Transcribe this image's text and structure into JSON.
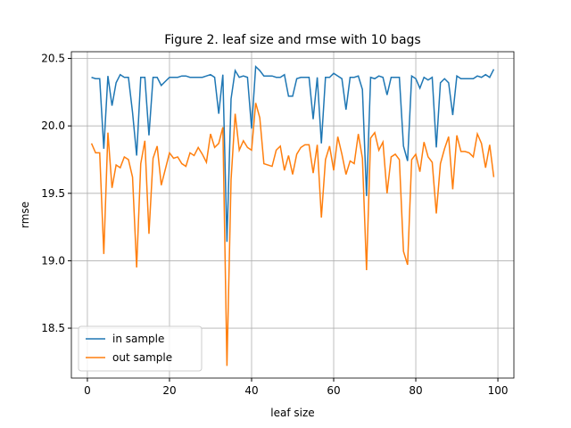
{
  "chart_data": {
    "type": "line",
    "title": "Figure 2. leaf size and rmse with 10 bags",
    "xlabel": "leaf size",
    "ylabel": "rmse",
    "x": [
      1,
      2,
      3,
      4,
      5,
      6,
      7,
      8,
      9,
      10,
      11,
      12,
      13,
      14,
      15,
      16,
      17,
      18,
      19,
      20,
      21,
      22,
      23,
      24,
      25,
      26,
      27,
      28,
      29,
      30,
      31,
      32,
      33,
      34,
      35,
      36,
      37,
      38,
      39,
      40,
      41,
      42,
      43,
      44,
      45,
      46,
      47,
      48,
      49,
      50,
      51,
      52,
      53,
      54,
      55,
      56,
      57,
      58,
      59,
      60,
      61,
      62,
      63,
      64,
      65,
      66,
      67,
      68,
      69,
      70,
      71,
      72,
      73,
      74,
      75,
      76,
      77,
      78,
      79,
      80,
      81,
      82,
      83,
      84,
      85,
      86,
      87,
      88,
      89,
      90,
      91,
      92,
      93,
      94,
      95,
      96,
      97,
      98,
      99
    ],
    "series": [
      {
        "name": "in sample",
        "color": "#1f77b4",
        "values": [
          20.36,
          20.35,
          20.35,
          19.83,
          20.37,
          20.15,
          20.32,
          20.38,
          20.36,
          20.36,
          20.1,
          19.78,
          20.36,
          20.36,
          19.93,
          20.36,
          20.36,
          20.3,
          20.33,
          20.36,
          20.36,
          20.36,
          20.37,
          20.37,
          20.36,
          20.36,
          20.36,
          20.36,
          20.37,
          20.38,
          20.36,
          20.09,
          20.38,
          19.14,
          20.2,
          20.41,
          20.36,
          20.37,
          20.36,
          19.98,
          20.44,
          20.41,
          20.37,
          20.37,
          20.37,
          20.36,
          20.36,
          20.38,
          20.22,
          20.22,
          20.35,
          20.36,
          20.36,
          20.36,
          20.05,
          20.36,
          19.87,
          20.36,
          20.36,
          20.39,
          20.37,
          20.35,
          20.12,
          20.36,
          20.36,
          20.37,
          20.27,
          19.48,
          20.36,
          20.35,
          20.37,
          20.36,
          20.23,
          20.36,
          20.36,
          20.36,
          19.85,
          19.74,
          20.37,
          20.35,
          20.28,
          20.36,
          20.34,
          20.36,
          19.84,
          20.32,
          20.35,
          20.32,
          20.08,
          20.37,
          20.35,
          20.35,
          20.35,
          20.35,
          20.37,
          20.36,
          20.38,
          20.36,
          20.42
        ]
      },
      {
        "name": "out sample",
        "color": "#ff7f0e",
        "values": [
          19.87,
          19.8,
          19.8,
          19.05,
          19.95,
          19.54,
          19.71,
          19.69,
          19.77,
          19.75,
          19.62,
          18.95,
          19.72,
          19.89,
          19.2,
          19.76,
          19.85,
          19.56,
          19.68,
          19.8,
          19.76,
          19.77,
          19.72,
          19.7,
          19.8,
          19.78,
          19.84,
          19.79,
          19.73,
          19.94,
          19.84,
          19.87,
          19.99,
          18.22,
          19.6,
          20.09,
          19.82,
          19.89,
          19.84,
          19.82,
          20.17,
          20.06,
          19.72,
          19.71,
          19.7,
          19.82,
          19.85,
          19.67,
          19.78,
          19.64,
          19.79,
          19.84,
          19.86,
          19.86,
          19.65,
          19.86,
          19.32,
          19.75,
          19.85,
          19.67,
          19.92,
          19.79,
          19.64,
          19.74,
          19.72,
          19.94,
          19.76,
          18.93,
          19.91,
          19.95,
          19.82,
          19.88,
          19.5,
          19.77,
          19.79,
          19.75,
          19.07,
          18.97,
          19.75,
          19.79,
          19.66,
          19.88,
          19.77,
          19.73,
          19.35,
          19.72,
          19.83,
          19.92,
          19.53,
          19.93,
          19.81,
          19.81,
          19.8,
          19.77,
          19.94,
          19.87,
          19.69,
          19.86,
          19.62
        ]
      }
    ],
    "xlim": [
      -3.9,
      103.9
    ],
    "xticks": [
      0,
      20,
      40,
      60,
      80,
      100
    ],
    "ylim": [
      18.13,
      20.55
    ],
    "yticks": [
      18.5,
      {
        "value": 19,
        "label": "19.0"
      },
      19.5,
      {
        "value": 20,
        "label": "20.0"
      },
      20.5
    ],
    "grid": true,
    "legend": "lower left"
  }
}
